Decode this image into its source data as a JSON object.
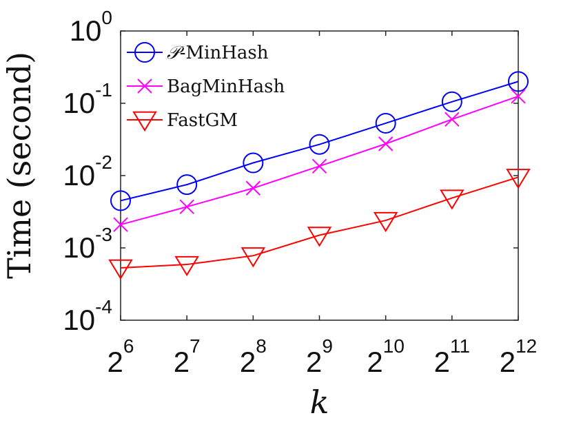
{
  "chart_data": {
    "type": "line",
    "xlabel": "k",
    "ylabel": "Time (second)",
    "y_scale": "log",
    "ylim": [
      0.0001,
      1
    ],
    "x": [
      64,
      128,
      256,
      512,
      1024,
      2048,
      4096
    ],
    "x_ticks": [
      {
        "base": "2",
        "exp": "6"
      },
      {
        "base": "2",
        "exp": "7"
      },
      {
        "base": "2",
        "exp": "8"
      },
      {
        "base": "2",
        "exp": "9"
      },
      {
        "base": "2",
        "exp": "10"
      },
      {
        "base": "2",
        "exp": "11"
      },
      {
        "base": "2",
        "exp": "12"
      }
    ],
    "y_ticks": [
      {
        "base": "10",
        "exp": "0"
      },
      {
        "base": "10",
        "exp": "-1"
      },
      {
        "base": "10",
        "exp": "-2"
      },
      {
        "base": "10",
        "exp": "-3"
      },
      {
        "base": "10",
        "exp": "-4"
      }
    ],
    "legend_position": "top-left",
    "grid": false,
    "series": [
      {
        "name": "-MinHash",
        "name_prefix": "𝒫",
        "color": "#0000ff",
        "marker": "circle",
        "values": [
          0.0045,
          0.0075,
          0.015,
          0.027,
          0.053,
          0.105,
          0.2
        ]
      },
      {
        "name": "BagMinHash",
        "color": "#ff00ff",
        "marker": "x",
        "values": [
          0.0021,
          0.0037,
          0.0067,
          0.0135,
          0.0275,
          0.06,
          0.125
        ]
      },
      {
        "name": "FastGM",
        "color": "#ff0000",
        "marker": "triangle-down",
        "values": [
          0.00053,
          0.00059,
          0.00078,
          0.0015,
          0.0024,
          0.0049,
          0.0095
        ]
      }
    ]
  }
}
